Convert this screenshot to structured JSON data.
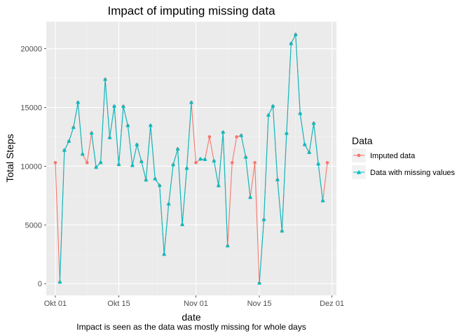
{
  "chart_data": {
    "type": "line",
    "title": "Impact of imputing missing data",
    "xlabel": "date",
    "ylabel": "Total Steps",
    "caption": "Impact is seen as the data was mostly missing for whole days",
    "xlim": [
      "2012-09-29",
      "2012-12-02"
    ],
    "ylim": [
      -1000,
      22300
    ],
    "x_ticks": [
      {
        "date": "2012-10-01",
        "label": "Okt 01"
      },
      {
        "date": "2012-10-15",
        "label": "Okt 15"
      },
      {
        "date": "2012-11-01",
        "label": "Nov 01"
      },
      {
        "date": "2012-11-15",
        "label": "Nov 15"
      },
      {
        "date": "2012-12-01",
        "label": "Dez 01"
      }
    ],
    "y_ticks": [
      0,
      5000,
      10000,
      15000,
      20000
    ],
    "grid": true,
    "legend": {
      "title": "Data",
      "position": "right"
    },
    "x": [
      "2012-10-01",
      "2012-10-02",
      "2012-10-03",
      "2012-10-04",
      "2012-10-05",
      "2012-10-06",
      "2012-10-07",
      "2012-10-08",
      "2012-10-09",
      "2012-10-10",
      "2012-10-11",
      "2012-10-12",
      "2012-10-13",
      "2012-10-14",
      "2012-10-15",
      "2012-10-16",
      "2012-10-17",
      "2012-10-18",
      "2012-10-19",
      "2012-10-20",
      "2012-10-21",
      "2012-10-22",
      "2012-10-23",
      "2012-10-24",
      "2012-10-25",
      "2012-10-26",
      "2012-10-27",
      "2012-10-28",
      "2012-10-29",
      "2012-10-30",
      "2012-10-31",
      "2012-11-01",
      "2012-11-02",
      "2012-11-03",
      "2012-11-04",
      "2012-11-05",
      "2012-11-06",
      "2012-11-07",
      "2012-11-08",
      "2012-11-09",
      "2012-11-10",
      "2012-11-11",
      "2012-11-12",
      "2012-11-13",
      "2012-11-14",
      "2012-11-15",
      "2012-11-16",
      "2012-11-17",
      "2012-11-18",
      "2012-11-19",
      "2012-11-20",
      "2012-11-21",
      "2012-11-22",
      "2012-11-23",
      "2012-11-24",
      "2012-11-25",
      "2012-11-26",
      "2012-11-27",
      "2012-11-28",
      "2012-11-29",
      "2012-11-30"
    ],
    "series": [
      {
        "name": "Imputed data",
        "color": "#F8766D",
        "marker": "circle",
        "values": [
          10300,
          126,
          11352,
          12116,
          13294,
          15420,
          11015,
          10300,
          12811,
          9900,
          10304,
          17382,
          12426,
          15098,
          10139,
          15084,
          13452,
          10056,
          11829,
          10395,
          8821,
          13460,
          8918,
          8355,
          2492,
          6778,
          10119,
          11458,
          5018,
          9819,
          15414,
          10300,
          10600,
          10571,
          12500,
          10439,
          8334,
          12883,
          3219,
          10300,
          12500,
          12608,
          10765,
          7336,
          10300,
          41,
          5441,
          14339,
          15110,
          8841,
          4472,
          12787,
          20427,
          21194,
          14478,
          11834,
          11162,
          13646,
          10183,
          7047,
          10300
        ]
      },
      {
        "name": "Data with missing values",
        "color": "#00BFC4",
        "marker": "triangle",
        "segments": [
          {
            "start": "2012-10-02",
            "values": [
              126,
              11352,
              12116,
              13294,
              15420,
              11015
            ]
          },
          {
            "start": "2012-10-09",
            "values": [
              12811,
              9900,
              10304,
              17382,
              12426,
              15098,
              10139,
              15084,
              13452,
              10056,
              11829,
              10395,
              8821,
              13460,
              8918,
              8355,
              2492,
              6778,
              10119,
              11458,
              5018,
              9819,
              15414
            ]
          },
          {
            "start": "2012-11-02",
            "values": [
              10600,
              10571
            ]
          },
          {
            "start": "2012-11-05",
            "values": [
              10439,
              8334,
              12883,
              3219
            ]
          },
          {
            "start": "2012-11-11",
            "values": [
              12608,
              10765,
              7336
            ]
          },
          {
            "start": "2012-11-15",
            "values": [
              41,
              5441,
              14339,
              15110,
              8841,
              4472,
              12787,
              20427,
              21194,
              14478,
              11834,
              11162,
              13646,
              10183,
              7047
            ]
          }
        ]
      }
    ]
  }
}
